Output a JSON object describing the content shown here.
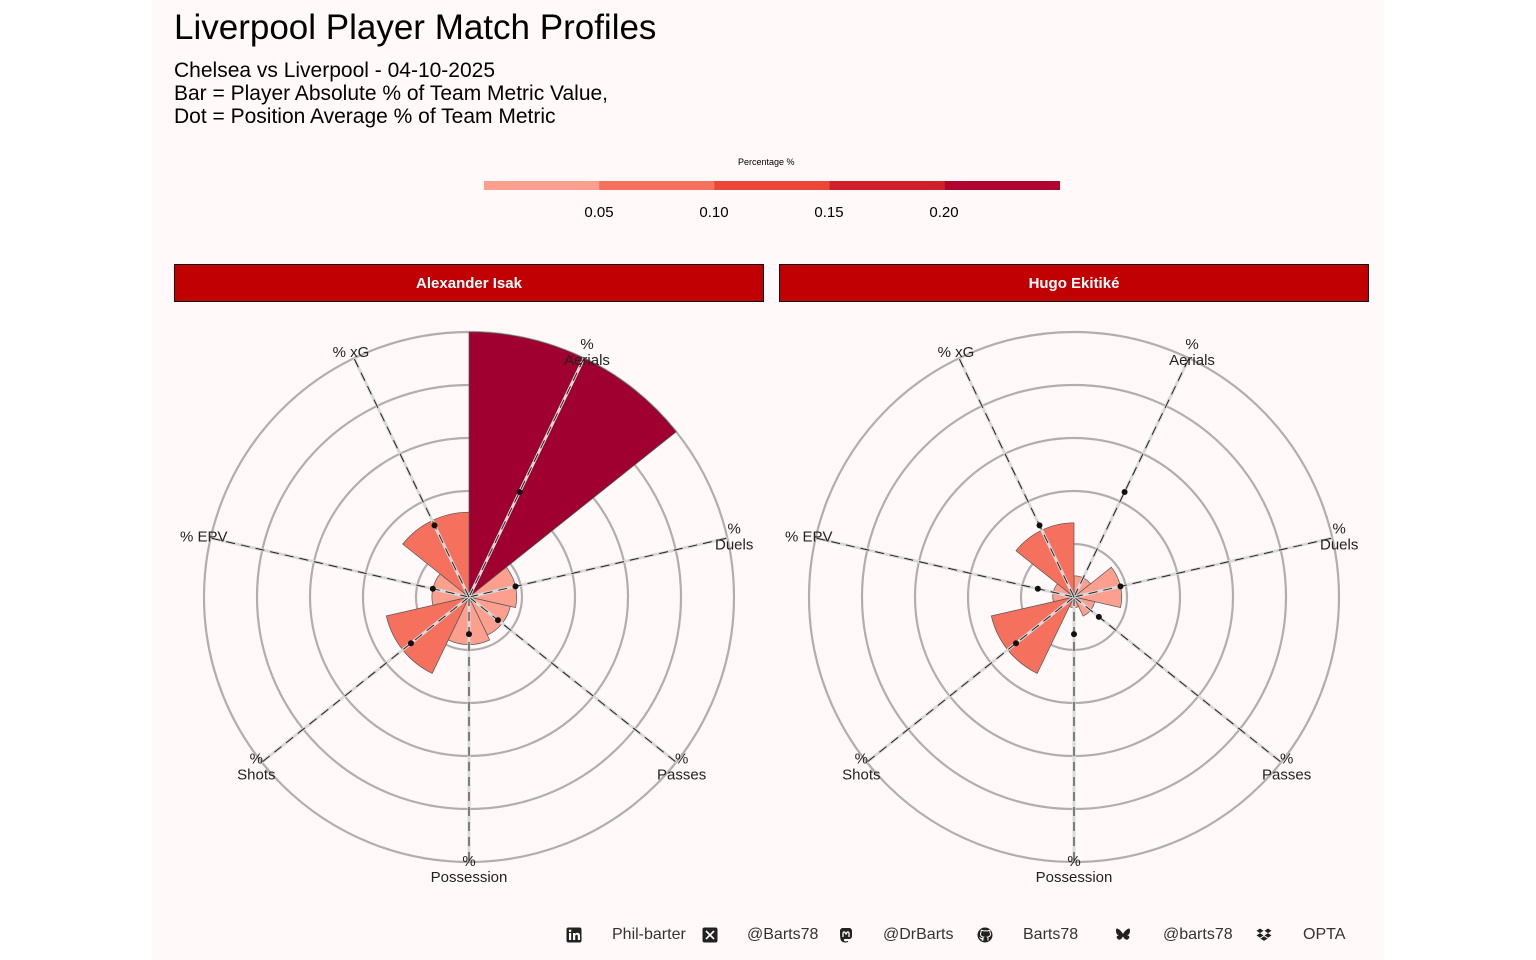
{
  "title": "Liverpool Player Match Profiles",
  "subtitle_lines": [
    "Chelsea vs Liverpool - 04-10-2025",
    "Bar = Player Absolute % of Team Metric Value,",
    "Dot = Position Average % of Team Metric"
  ],
  "legend": {
    "title": "Percentage %",
    "ticks": [
      "0.05",
      "0.10",
      "0.15",
      "0.20"
    ],
    "colors": [
      "#fc9f8f",
      "#f6705e",
      "#ec4637",
      "#d0202b",
      "#b0052f"
    ]
  },
  "footer": [
    {
      "icon": "linkedin-icon",
      "text": "Phil-barter"
    },
    {
      "icon": "x-twitter-icon",
      "text": "@Barts78"
    },
    {
      "icon": "mastodon-icon",
      "text": "@DrBarts"
    },
    {
      "icon": "github-icon",
      "text": "Barts78"
    },
    {
      "icon": "bluesky-icon",
      "text": "@barts78"
    },
    {
      "icon": "dropbox-icon",
      "text": "OPTA"
    }
  ],
  "chart_data": {
    "type": "polar-bar",
    "categories": [
      "% Aerials",
      "% Duels",
      "% Passes",
      "% Possession",
      "% Shots",
      "% EPV",
      "% xG"
    ],
    "axis_labels": [
      [
        "%",
        "Aerials"
      ],
      [
        "%",
        "Duels"
      ],
      [
        "%",
        "Passes"
      ],
      [
        "%",
        "Possession"
      ],
      [
        "%",
        "Shots"
      ],
      [
        "% EPV"
      ],
      [
        "% xG"
      ]
    ],
    "rlim": [
      0,
      0.25
    ],
    "grid_rings": [
      0.05,
      0.1,
      0.15,
      0.2,
      0.25
    ],
    "color_scale": {
      "breaks": [
        0.05,
        0.1,
        0.15,
        0.2
      ],
      "colors": [
        "#fc9f8f",
        "#f6705e",
        "#ec4637",
        "#d0202b",
        "#a0002f"
      ]
    },
    "facets": [
      {
        "player": "Alexander Isak",
        "values": [
          0.25,
          0.045,
          0.04,
          0.045,
          0.08,
          0.035,
          0.08
        ],
        "averages": [
          0.11,
          0.045,
          0.035,
          0.035,
          0.07,
          0.035,
          0.075
        ]
      },
      {
        "player": "Hugo Ekitiké",
        "values": [
          0.02,
          0.045,
          0.02,
          0.01,
          0.08,
          0.02,
          0.07
        ],
        "averages": [
          0.11,
          0.045,
          0.03,
          0.035,
          0.07,
          0.035,
          0.075
        ]
      }
    ]
  }
}
